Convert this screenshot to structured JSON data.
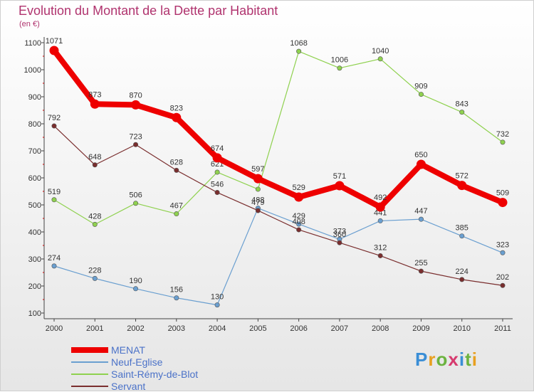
{
  "header": {
    "title": "Evolution du Montant de la Dette par Habitant",
    "unit": "(en €)"
  },
  "logo": {
    "text": "Proxiti",
    "letter_colors": [
      "#3a8ed6",
      "#e8a020",
      "#6cb33f",
      "#d63a6e",
      "#3a8ed6",
      "#6cb33f",
      "#e8a020"
    ]
  },
  "chart_data": {
    "type": "line",
    "title": "Evolution du Montant de la Dette par Habitant",
    "ylabel": "(en €)",
    "xlabel": "",
    "ylim": [
      100,
      1100
    ],
    "yticks": [
      100,
      200,
      300,
      400,
      500,
      600,
      700,
      800,
      900,
      1000,
      1100
    ],
    "grid": false,
    "legend_position": "bottom-left",
    "x": [
      "2000",
      "2001",
      "2002",
      "2003",
      "2004",
      "2005",
      "2006",
      "2007",
      "2008",
      "2009",
      "2010",
      "2011"
    ],
    "series": [
      {
        "name": "MENAT",
        "color": "#ee0000",
        "values": [
          1071,
          873,
          870,
          823,
          674,
          597,
          529,
          571,
          492,
          650,
          572,
          509
        ]
      },
      {
        "name": "Neuf-Eglise",
        "color": "#6a9fd0",
        "values": [
          274,
          228,
          190,
          156,
          130,
          488,
          429,
          373,
          441,
          447,
          385,
          323
        ]
      },
      {
        "name": "Saint-Rémy-de-Blot",
        "color": "#8fd14f",
        "values": [
          519,
          428,
          506,
          467,
          621,
          558,
          1068,
          1006,
          1040,
          909,
          843,
          732
        ]
      },
      {
        "name": "Servant",
        "color": "#7a2e2e",
        "values": [
          792,
          648,
          723,
          628,
          546,
          479,
          408,
          360,
          312,
          255,
          224,
          202
        ]
      }
    ],
    "point_labels": [
      [
        "1071",
        "873",
        "870",
        "823",
        "674",
        "597",
        "529",
        "571",
        "492",
        "650",
        "572",
        "509"
      ],
      [
        "274",
        "228",
        "190",
        "156",
        "130",
        "488",
        "429",
        "373",
        "441",
        "447",
        "385",
        "323"
      ],
      [
        "519",
        "428",
        "506",
        "467",
        "621",
        "",
        "1068",
        "1006",
        "1040",
        "909",
        "843",
        "732"
      ],
      [
        "792",
        "648",
        "723",
        "628",
        "546",
        "479",
        "408",
        "360",
        "312",
        "255",
        "224",
        "202"
      ]
    ]
  }
}
